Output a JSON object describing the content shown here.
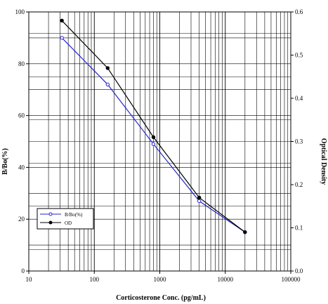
{
  "chart_data": {
    "type": "line",
    "xlabel": "Corticosterone Conc. (pg/mL)",
    "ylabel": "B/Bo(%)",
    "y2label": "Optical Density",
    "x_scale": "log",
    "xlim": [
      10,
      100000
    ],
    "ylim": [
      0,
      100
    ],
    "y2lim": [
      0,
      0.6
    ],
    "grid": true,
    "legend_position": "bottom-left",
    "x_ticks": [
      {
        "value": 10,
        "label": "10"
      },
      {
        "value": 100,
        "label": "100"
      },
      {
        "value": 1000,
        "label": "1000"
      },
      {
        "value": 10000,
        "label": "10000"
      },
      {
        "value": 100000,
        "label": "100000"
      }
    ],
    "y_ticks": [
      {
        "value": 0,
        "label": "0"
      },
      {
        "value": 20,
        "label": "20"
      },
      {
        "value": 40,
        "label": "40"
      },
      {
        "value": 60,
        "label": "60"
      },
      {
        "value": 80,
        "label": "80"
      },
      {
        "value": 100,
        "label": "100"
      }
    ],
    "y2_ticks": [
      {
        "value": 0.0,
        "label": "0.0"
      },
      {
        "value": 0.1,
        "label": "0.1"
      },
      {
        "value": 0.2,
        "label": "0.2"
      },
      {
        "value": 0.3,
        "label": "0.3"
      },
      {
        "value": 0.4,
        "label": "0.4"
      },
      {
        "value": 0.5,
        "label": "0.5"
      },
      {
        "value": 0.6,
        "label": "0.6"
      }
    ],
    "series": [
      {
        "name": "B/Bo(%)",
        "axis": "left",
        "color": "#2222cc",
        "marker": "open-circle",
        "x": [
          32,
          160,
          800,
          4000,
          20000
        ],
        "values": [
          90,
          72,
          49,
          27,
          15
        ]
      },
      {
        "name": "OD",
        "axis": "right",
        "color": "#000000",
        "marker": "filled-circle",
        "x": [
          32,
          160,
          800,
          4000,
          20000
        ],
        "values": [
          0.58,
          0.47,
          0.31,
          0.17,
          0.09
        ]
      }
    ]
  }
}
